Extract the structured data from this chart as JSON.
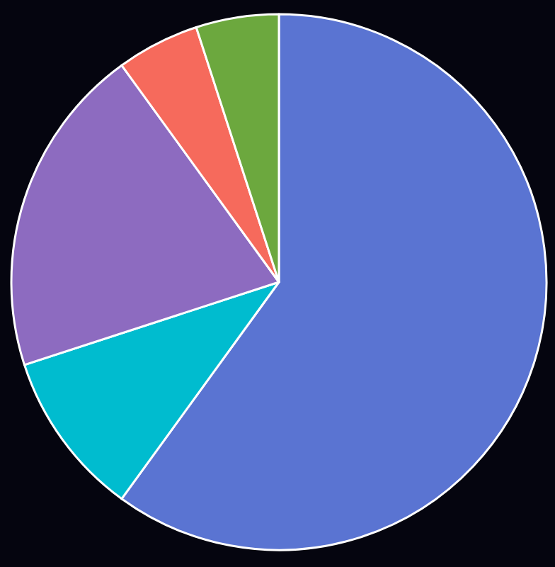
{
  "chart_data": {
    "type": "pie",
    "categories": [
      null,
      null,
      null,
      null,
      null
    ],
    "values": [
      60,
      10,
      20,
      5,
      5
    ],
    "colors": [
      "#5a74d2",
      "#00bccf",
      "#8d6bc0",
      "#f66a5c",
      "#6ca83e"
    ]
  }
}
